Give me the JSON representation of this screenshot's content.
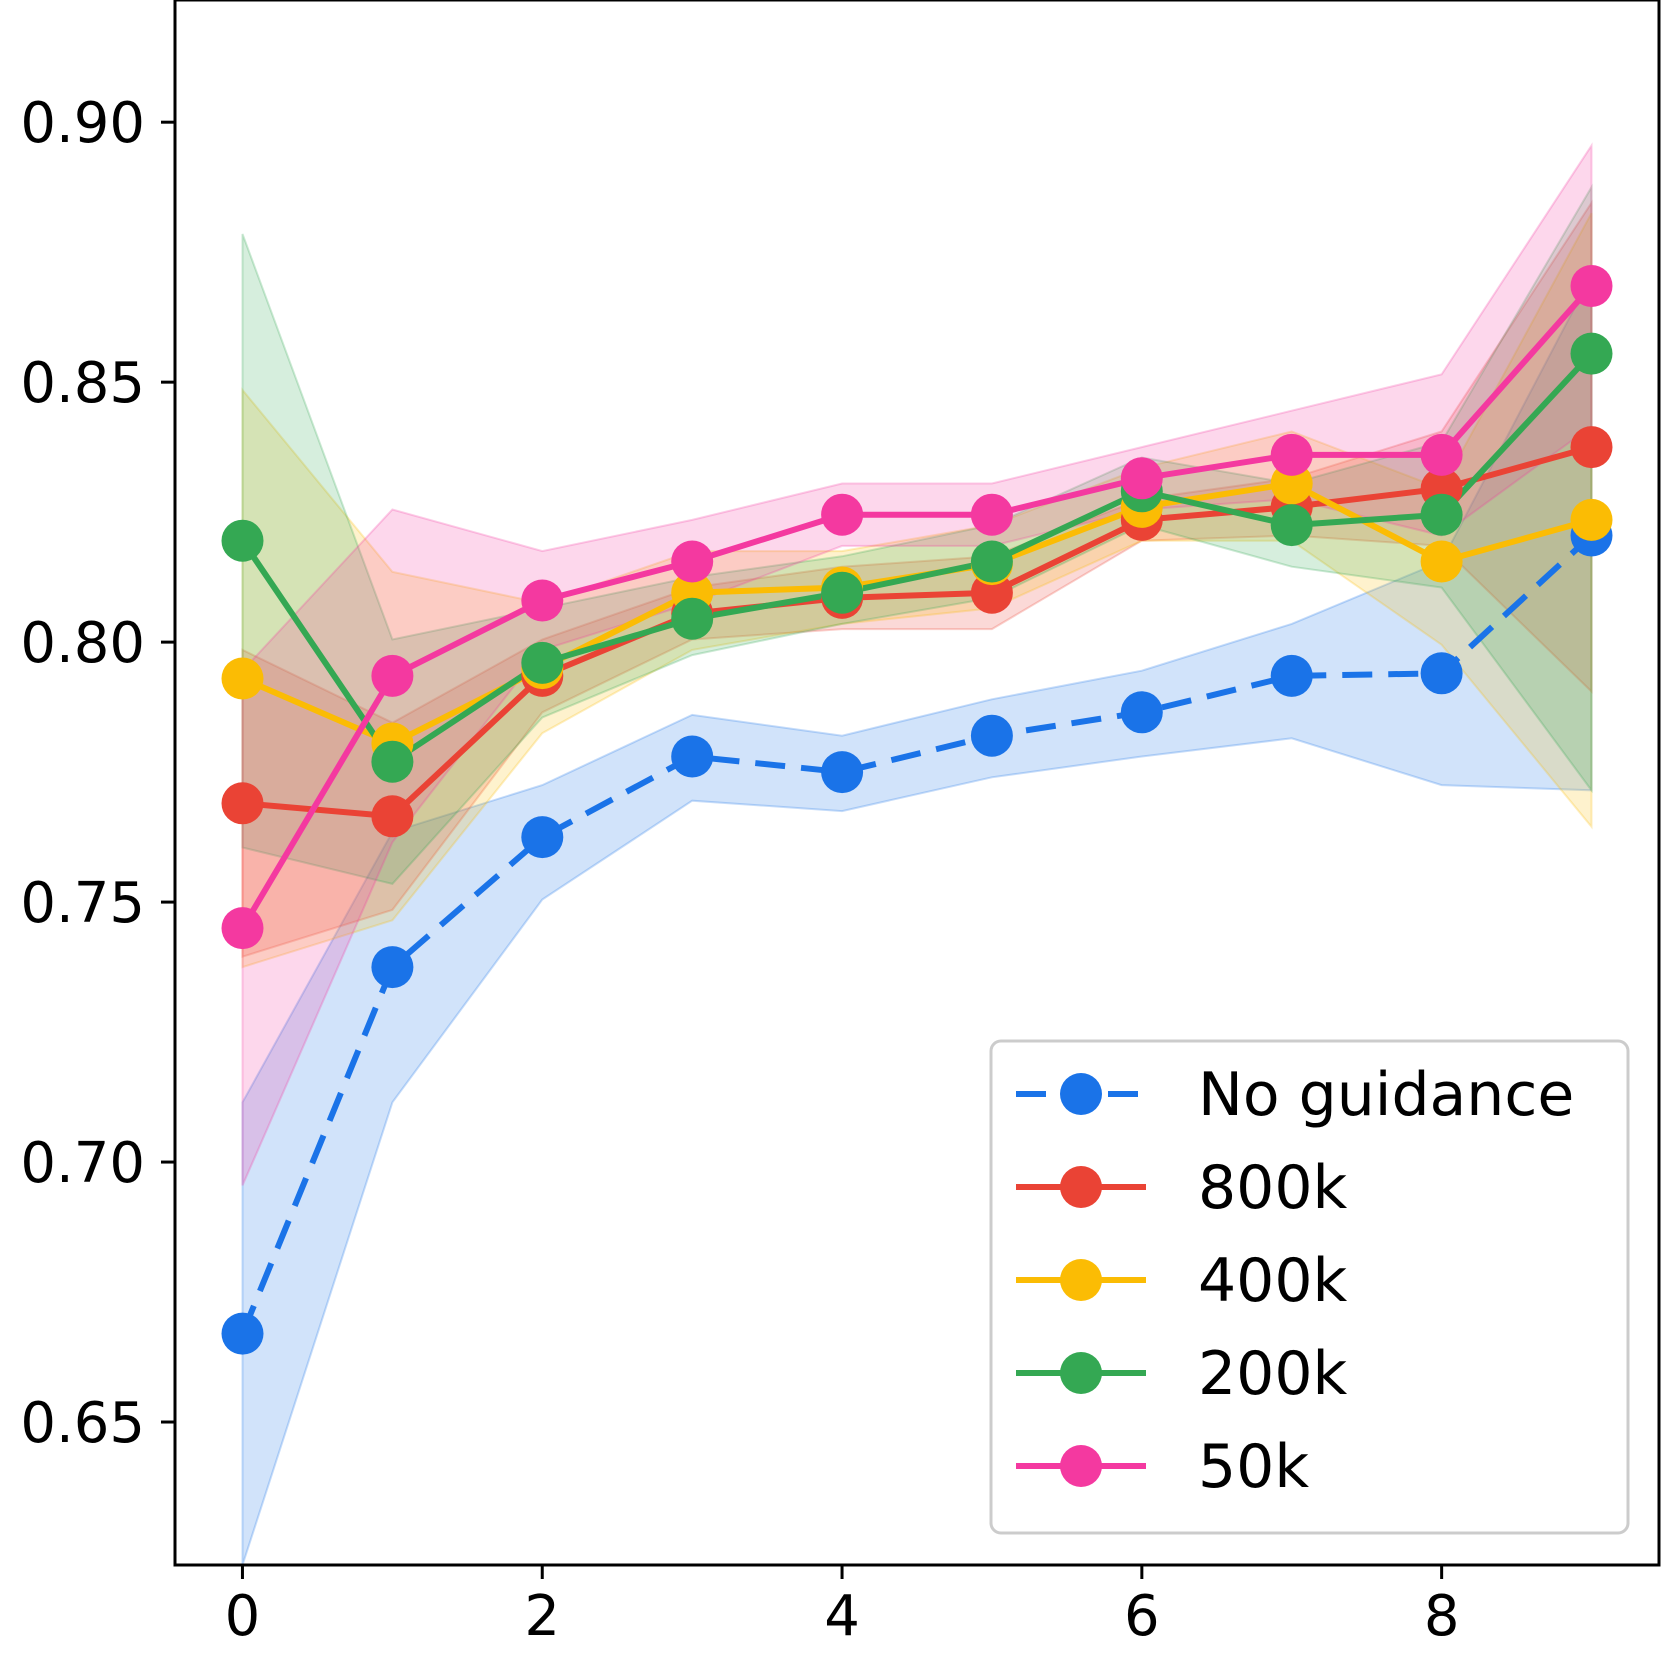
{
  "chart_data": {
    "type": "line",
    "title": "",
    "xlabel": "",
    "ylabel": "",
    "xlim": [
      -0.45,
      9.45
    ],
    "ylim": [
      0.6225,
      0.9235
    ],
    "x_ticks": [
      0,
      2,
      4,
      6,
      8
    ],
    "y_ticks": [
      0.65,
      0.7,
      0.75,
      0.8,
      0.85,
      0.9
    ],
    "x_tick_labels": [
      "0",
      "2",
      "4",
      "6",
      "8"
    ],
    "y_tick_labels": [
      "0.65",
      "0.70",
      "0.75",
      "0.80",
      "0.85",
      "0.90"
    ],
    "grid": false,
    "legend": "lower-right",
    "x": [
      0,
      1,
      2,
      3,
      4,
      5,
      6,
      7,
      8,
      9
    ],
    "series": [
      {
        "name": "No guidance",
        "color": "#1a73e8",
        "dashed": true,
        "values": [
          0.667,
          0.7375,
          0.7625,
          0.778,
          0.775,
          0.782,
          0.7865,
          0.7935,
          0.794,
          0.8205
        ],
        "lower": [
          0.6225,
          0.7115,
          0.7505,
          0.7695,
          0.7675,
          0.774,
          0.778,
          0.7815,
          0.7725,
          0.7715
        ],
        "upper": [
          0.7115,
          0.7635,
          0.7725,
          0.786,
          0.782,
          0.789,
          0.7945,
          0.8035,
          0.8155,
          0.8705
        ]
      },
      {
        "name": "800k",
        "color": "#ea4335",
        "dashed": false,
        "values": [
          0.769,
          0.7665,
          0.7935,
          0.8055,
          0.8085,
          0.8095,
          0.8235,
          0.826,
          0.8295,
          0.8375
        ],
        "lower": [
          0.7395,
          0.7485,
          0.7865,
          0.8005,
          0.8025,
          0.8025,
          0.8195,
          0.8205,
          0.8185,
          0.7905
        ],
        "upper": [
          0.7985,
          0.7845,
          0.8005,
          0.8105,
          0.8145,
          0.8165,
          0.8275,
          0.8315,
          0.8405,
          0.8845
        ]
      },
      {
        "name": "400k",
        "color": "#fbbc04",
        "dashed": false,
        "values": [
          0.793,
          0.7805,
          0.795,
          0.8095,
          0.8105,
          0.815,
          0.826,
          0.8305,
          0.8155,
          0.8235
        ],
        "lower": [
          0.7375,
          0.7465,
          0.7825,
          0.7985,
          0.8035,
          0.8065,
          0.8195,
          0.8195,
          0.7995,
          0.7645
        ],
        "upper": [
          0.8485,
          0.8135,
          0.8075,
          0.8175,
          0.8175,
          0.8225,
          0.8335,
          0.8405,
          0.8295,
          0.8825
        ]
      },
      {
        "name": "200k",
        "color": "#34a853",
        "dashed": false,
        "values": [
          0.8195,
          0.777,
          0.796,
          0.8045,
          0.8095,
          0.8155,
          0.829,
          0.8225,
          0.8245,
          0.8555
        ],
        "lower": [
          0.7605,
          0.7535,
          0.7855,
          0.7975,
          0.8035,
          0.8085,
          0.8225,
          0.8145,
          0.8105,
          0.7715
        ],
        "upper": [
          0.8785,
          0.8005,
          0.8065,
          0.8125,
          0.8165,
          0.8225,
          0.8355,
          0.8305,
          0.8385,
          0.8875
        ]
      },
      {
        "name": "50k",
        "color": "#f439a0",
        "dashed": false,
        "values": [
          0.745,
          0.7935,
          0.808,
          0.8155,
          0.8245,
          0.8245,
          0.8315,
          0.836,
          0.836,
          0.8685
        ],
        "lower": [
          0.6955,
          0.7615,
          0.7985,
          0.8075,
          0.8185,
          0.8185,
          0.8255,
          0.8275,
          0.8205,
          0.8415
        ],
        "upper": [
          0.7945,
          0.8255,
          0.8175,
          0.8235,
          0.8305,
          0.8305,
          0.8375,
          0.8445,
          0.8515,
          0.8955
        ]
      }
    ]
  }
}
